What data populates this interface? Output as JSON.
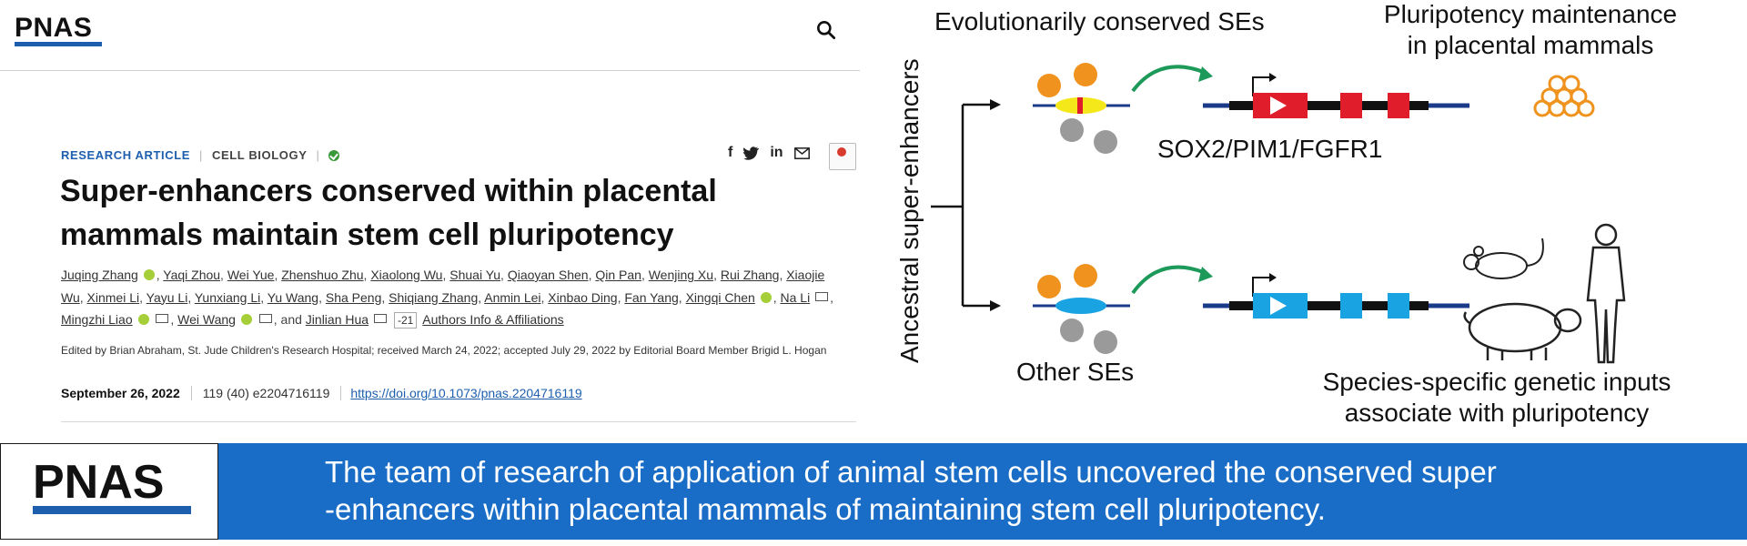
{
  "header": {
    "logo": "PNAS",
    "search_icon": "search-icon"
  },
  "article": {
    "type": "RESEARCH ARTICLE",
    "section": "CELL BIOLOGY",
    "separator": "|",
    "title": "Super-enhancers conserved within placental mammals maintain stem cell pluripotency",
    "authors": [
      {
        "name": "Juqing Zhang",
        "orcid": true
      },
      {
        "name": "Yaqi Zhou"
      },
      {
        "name": "Wei Yue"
      },
      {
        "name": "Zhenshuo Zhu"
      },
      {
        "name": "Xiaolong Wu"
      },
      {
        "name": "Shuai Yu"
      },
      {
        "name": "Qiaoyan Shen"
      },
      {
        "name": "Qin Pan"
      },
      {
        "name": "Wenjing Xu"
      },
      {
        "name": "Rui Zhang"
      },
      {
        "name": "Xiaojie Wu"
      },
      {
        "name": "Xinmei Li"
      },
      {
        "name": "Yayu Li"
      },
      {
        "name": "Yunxiang Li"
      },
      {
        "name": "Yu Wang"
      },
      {
        "name": "Sha Peng"
      },
      {
        "name": "Shiqiang Zhang"
      },
      {
        "name": "Anmin Lei"
      },
      {
        "name": "Xinbao Ding"
      },
      {
        "name": "Fan Yang"
      },
      {
        "name": "Xingqi Chen",
        "orcid": true
      },
      {
        "name": "Na Li",
        "mail": true
      },
      {
        "name": "Mingzhi Liao",
        "orcid": true,
        "mail": true
      },
      {
        "name": "Wei Wang",
        "orcid": true,
        "mail": true
      },
      {
        "name": "Jinlian Hua",
        "mail": true,
        "prefix": "and "
      }
    ],
    "more_authors": "-21",
    "affiliations_link": "Authors Info & Affiliations",
    "edited_by": "Edited by Brian Abraham, St. Jude Children's Research Hospital; received March 24, 2022; accepted July 29, 2022 by Editorial Board Member Brigid L. Hogan",
    "date": "September 26, 2022",
    "citation": "119 (40) e2204716119",
    "doi": "https://doi.org/10.1073/pnas.2204716119",
    "share_icons": [
      "facebook-icon",
      "twitter-icon",
      "linkedin-icon",
      "email-icon"
    ]
  },
  "graphic": {
    "top_heading": "Evolutionarily conserved SEs",
    "top_right": [
      "Pluripotency maintenance",
      "in placental mammals"
    ],
    "genes": "SOX2/PIM1/FGFR1",
    "axis_label": "Ancestral super-enhancers",
    "bottom_heading": "Other SEs",
    "bottom_right": [
      "Species-specific genetic inputs",
      "associate with pluripotency"
    ],
    "colors": {
      "orange": "#f0931e",
      "gray": "#9a9a9a",
      "yellow": "#f5e81a",
      "red": "#e01e2b",
      "cyan": "#1aa3e3",
      "green": "#1d9a5a",
      "navy": "#1a3a8a"
    }
  },
  "banner": {
    "logo": "PNAS",
    "text_line1": "The team of research of application of animal stem cells uncovered the conserved super",
    "text_line2": "-enhancers within placental mammals of maintaining stem cell pluripotency."
  }
}
